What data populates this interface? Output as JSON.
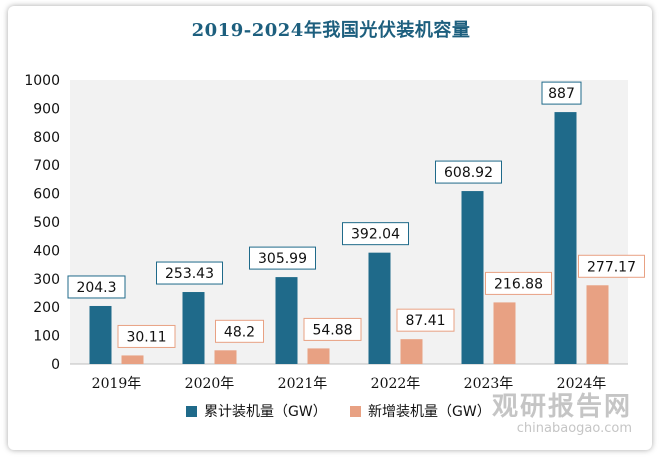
{
  "chart_data": {
    "type": "bar",
    "title": "2019-2024年我国光伏装机容量",
    "categories": [
      "2019年",
      "2020年",
      "2021年",
      "2022年",
      "2023年",
      "2024年"
    ],
    "series": [
      {
        "name": "累计装机量（GW）",
        "values": [
          204.3,
          253.43,
          305.99,
          392.04,
          608.92,
          887
        ],
        "labels": [
          "204.3",
          "253.43",
          "305.99",
          "392.04",
          "608.92",
          "887"
        ],
        "color": "#1f6a8a"
      },
      {
        "name": "新增装机量（GW）",
        "values": [
          30.11,
          48.2,
          54.88,
          87.41,
          216.88,
          277.17
        ],
        "labels": [
          "30.11",
          "48.2",
          "54.88",
          "87.41",
          "216.88",
          "277.17"
        ],
        "color": "#e8a183"
      }
    ],
    "ylim": [
      0,
      1000
    ],
    "yticks": [
      "0",
      "100",
      "200",
      "300",
      "400",
      "500",
      "600",
      "700",
      "800",
      "900",
      "1000"
    ],
    "legend_position": "bottom",
    "grid": false
  },
  "watermark": {
    "cn": "观研报告网",
    "en": "chinabaogao.com"
  }
}
